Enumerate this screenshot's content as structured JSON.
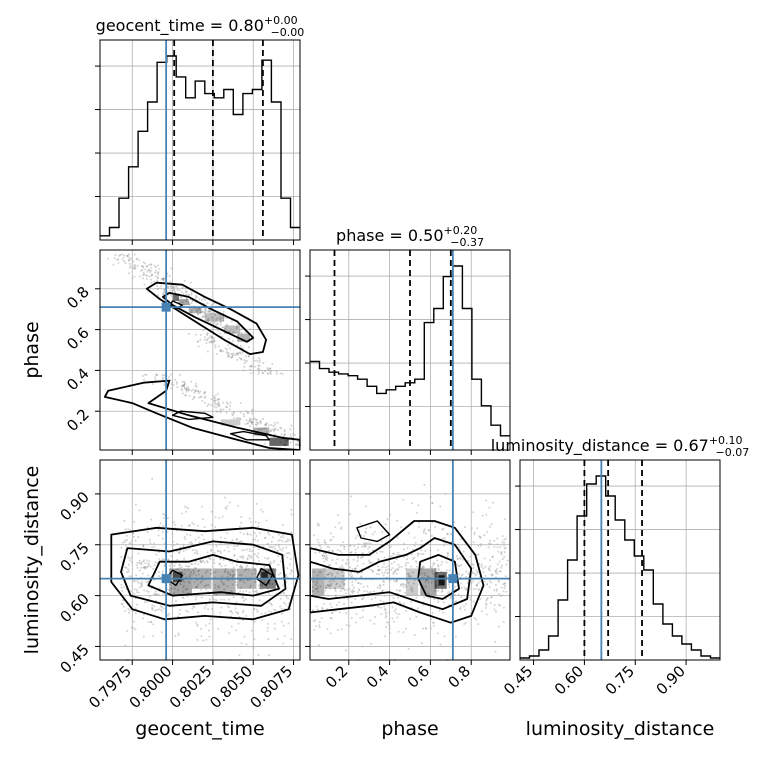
{
  "chart_data": {
    "type": "corner",
    "parameters": [
      "geocent_time",
      "phase",
      "luminosity_distance"
    ],
    "truth": {
      "geocent_time": 0.7996,
      "phase": 0.71,
      "luminosity_distance": 0.65
    },
    "colors": {
      "truth": "#4682b4",
      "hist": "#000000",
      "grid": "#b0b0b0",
      "samples": "#808080"
    },
    "titles": [
      {
        "param": "geocent_time",
        "text": "geocent_time = 0.80",
        "plus": "+0.00",
        "minus": "−0.00"
      },
      {
        "param": "phase",
        "text": "phase = 0.50",
        "plus": "+0.20",
        "minus": "−0.37"
      },
      {
        "param": "luminosity_distance",
        "text": "luminosity_distance = 0.67",
        "plus": "+0.10",
        "minus": "−0.07"
      }
    ],
    "axes": {
      "geocent_time": {
        "range": [
          0.7955,
          0.8079
        ],
        "ticks": [
          0.7975,
          0.8,
          0.8025,
          0.805,
          0.8075
        ],
        "tick_labels": [
          "0.7975",
          "0.8000",
          "0.8025",
          "0.8050",
          "0.8075"
        ],
        "label": "geocent_time"
      },
      "phase": {
        "range": [
          0.01,
          0.99
        ],
        "ticks": [
          0.2,
          0.4,
          0.6,
          0.8
        ],
        "tick_labels": [
          "0.2",
          "0.4",
          "0.6",
          "0.8"
        ],
        "label": "phase"
      },
      "luminosity_distance": {
        "range": [
          0.41,
          1.0
        ],
        "ticks": [
          0.45,
          0.6,
          0.75,
          0.9
        ],
        "tick_labels": [
          "0.45",
          "0.60",
          "0.75",
          "0.90"
        ],
        "label": "luminosity_distance"
      }
    },
    "quantiles": {
      "geocent_time": [
        0.8001,
        0.8025,
        0.8056
      ],
      "phase": [
        0.13,
        0.5,
        0.7
      ],
      "luminosity_distance": [
        0.6,
        0.67,
        0.77
      ]
    },
    "histograms": {
      "geocent_time": [
        2,
        6,
        20,
        35,
        52,
        66,
        85,
        88,
        78,
        68,
        76,
        70,
        68,
        72,
        60,
        70,
        72,
        86,
        66,
        20,
        6
      ],
      "phase": [
        50,
        46,
        44,
        43,
        42,
        40,
        36,
        32,
        34,
        36,
        38,
        40,
        72,
        80,
        98,
        104,
        80,
        40,
        25,
        14,
        8
      ],
      "luminosity_distance": [
        1,
        2,
        5,
        12,
        30,
        50,
        72,
        88,
        92,
        82,
        70,
        60,
        52,
        45,
        28,
        18,
        12,
        8,
        5,
        2,
        1
      ]
    }
  }
}
